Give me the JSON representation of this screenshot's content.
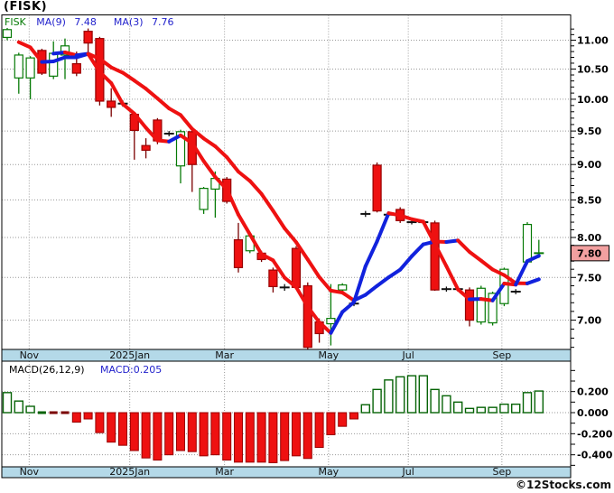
{
  "window": {
    "title": "(FISK)"
  },
  "main_chart": {
    "legend": {
      "symbol": "FISK",
      "ma9_label": "MA(9)",
      "ma9_value": "7.48",
      "ma3_label": "MA(3)",
      "ma3_value": "7.76"
    },
    "price_tag": "7.80",
    "y_axis_labels": [
      "11.00",
      "10.50",
      "10.00",
      "9.50",
      "9.00",
      "8.50",
      "8.00",
      "7.50",
      "7.00"
    ]
  },
  "macd_panel": {
    "legend_label": "MACD(26,12,9)",
    "legend_value": "MACD:0.205",
    "y_axis_labels": [
      "0.200",
      "0.000",
      "-0.200",
      "-0.400"
    ]
  },
  "watermark": "©12Stocks.com",
  "colors": {
    "candle_up": "#067a06",
    "candle_down_fill": "#ee1111",
    "candle_down_border": "#990000",
    "candle_down_wick": "#7a0000",
    "doji": "#111111",
    "ma_rising": "#1122dd",
    "ma_falling": "#ee1111",
    "band_bg": "#b4d9e8",
    "grid": "#999999",
    "price_tag_bg": "#f2a0a0",
    "macd_pos_border": "#066306",
    "legend_blue": "#2222cc",
    "axis_text": "#000000"
  },
  "chart_data": {
    "type": "candlestick+macd",
    "symbol": "FISK",
    "interval_note": "weekly candles, ~Oct 2024 - Sep 2025",
    "price_scale": "log",
    "ylim": [
      6.65,
      11.25
    ],
    "last_price": 7.8,
    "months": [
      {
        "label": "Nov",
        "week": 1.9
      },
      {
        "label": "2025Jan",
        "week": 10.6
      },
      {
        "label": "Mar",
        "week": 18.8
      },
      {
        "label": "May",
        "week": 27.8
      },
      {
        "label": "Jul",
        "week": 34.7
      },
      {
        "label": "Sep",
        "week": 42.8
      }
    ],
    "ma_overlays": [
      {
        "period": 9,
        "current": 7.48
      },
      {
        "period": 3,
        "current": 7.76
      }
    ],
    "candles": [
      {
        "o": 11.05,
        "h": 11.22,
        "l": 11.0,
        "c": 11.19,
        "t": "g"
      },
      {
        "o": 10.35,
        "h": 10.78,
        "l": 10.09,
        "c": 10.74,
        "t": "g"
      },
      {
        "o": 10.35,
        "h": 10.72,
        "l": 10.0,
        "c": 10.69,
        "t": "g"
      },
      {
        "o": 10.82,
        "h": 10.85,
        "l": 10.4,
        "c": 10.43,
        "t": "r"
      },
      {
        "o": 10.38,
        "h": 10.98,
        "l": 10.33,
        "c": 10.77,
        "t": "g"
      },
      {
        "o": 10.74,
        "h": 11.03,
        "l": 10.33,
        "c": 10.9,
        "t": "g"
      },
      {
        "o": 10.59,
        "h": 10.8,
        "l": 10.38,
        "c": 10.43,
        "t": "r"
      },
      {
        "o": 11.16,
        "h": 11.21,
        "l": 10.79,
        "c": 10.95,
        "t": "r"
      },
      {
        "o": 11.03,
        "h": 11.06,
        "l": 9.9,
        "c": 9.97,
        "t": "r"
      },
      {
        "o": 9.97,
        "h": 10.18,
        "l": 9.72,
        "c": 9.87,
        "t": "r"
      },
      {
        "o": 9.93,
        "h": 9.98,
        "l": 9.88,
        "c": 9.93,
        "t": "d"
      },
      {
        "o": 9.76,
        "h": 9.8,
        "l": 9.07,
        "c": 9.51,
        "t": "r"
      },
      {
        "o": 9.28,
        "h": 9.39,
        "l": 9.09,
        "c": 9.21,
        "t": "r"
      },
      {
        "o": 9.67,
        "h": 9.7,
        "l": 9.3,
        "c": 9.35,
        "t": "r"
      },
      {
        "o": 9.46,
        "h": 9.5,
        "l": 9.42,
        "c": 9.46,
        "t": "d"
      },
      {
        "o": 8.98,
        "h": 9.52,
        "l": 8.73,
        "c": 9.49,
        "t": "g"
      },
      {
        "o": 9.49,
        "h": 9.52,
        "l": 8.61,
        "c": 9.0,
        "t": "r"
      },
      {
        "o": 8.37,
        "h": 8.68,
        "l": 8.31,
        "c": 8.66,
        "t": "g"
      },
      {
        "o": 8.65,
        "h": 8.9,
        "l": 8.26,
        "c": 8.8,
        "t": "g"
      },
      {
        "o": 8.79,
        "h": 8.82,
        "l": 8.45,
        "c": 8.48,
        "t": "r"
      },
      {
        "o": 7.97,
        "h": 8.19,
        "l": 7.56,
        "c": 7.62,
        "t": "r"
      },
      {
        "o": 7.83,
        "h": 8.04,
        "l": 7.8,
        "c": 8.02,
        "t": "g"
      },
      {
        "o": 7.8,
        "h": 7.83,
        "l": 7.69,
        "c": 7.72,
        "t": "r"
      },
      {
        "o": 7.59,
        "h": 7.62,
        "l": 7.32,
        "c": 7.39,
        "t": "r"
      },
      {
        "o": 7.38,
        "h": 7.42,
        "l": 7.34,
        "c": 7.38,
        "t": "d"
      },
      {
        "o": 7.86,
        "h": 7.89,
        "l": 7.36,
        "c": 7.38,
        "t": "r"
      },
      {
        "o": 7.4,
        "h": 7.44,
        "l": 6.68,
        "c": 6.7,
        "t": "r"
      },
      {
        "o": 6.98,
        "h": 7.02,
        "l": 6.75,
        "c": 6.85,
        "t": "r"
      },
      {
        "o": 6.96,
        "h": 7.42,
        "l": 6.72,
        "c": 7.02,
        "t": "g"
      },
      {
        "o": 7.35,
        "h": 7.43,
        "l": 7.33,
        "c": 7.41,
        "t": "g"
      },
      {
        "o": 7.19,
        "h": 7.22,
        "l": 7.16,
        "c": 7.19,
        "t": "d"
      },
      {
        "o": 8.31,
        "h": 8.35,
        "l": 8.27,
        "c": 8.31,
        "t": "d"
      },
      {
        "o": 8.99,
        "h": 9.03,
        "l": 8.33,
        "c": 8.35,
        "t": "r"
      },
      {
        "o": 8.3,
        "h": 8.33,
        "l": 8.27,
        "c": 8.3,
        "t": "d"
      },
      {
        "o": 8.37,
        "h": 8.4,
        "l": 8.19,
        "c": 8.22,
        "t": "r"
      },
      {
        "o": 8.2,
        "h": 8.23,
        "l": 8.17,
        "c": 8.2,
        "t": "d"
      },
      {
        "o": 8.2,
        "h": 8.23,
        "l": 8.17,
        "c": 8.2,
        "t": "d"
      },
      {
        "o": 8.19,
        "h": 8.22,
        "l": 7.34,
        "c": 7.35,
        "t": "r"
      },
      {
        "o": 7.36,
        "h": 7.39,
        "l": 7.33,
        "c": 7.36,
        "t": "d"
      },
      {
        "o": 7.36,
        "h": 7.39,
        "l": 7.33,
        "c": 7.36,
        "t": "d"
      },
      {
        "o": 7.35,
        "h": 7.38,
        "l": 6.93,
        "c": 7.0,
        "t": "r"
      },
      {
        "o": 6.98,
        "h": 7.4,
        "l": 6.95,
        "c": 7.37,
        "t": "g"
      },
      {
        "o": 6.97,
        "h": 7.33,
        "l": 6.94,
        "c": 7.31,
        "t": "g"
      },
      {
        "o": 7.19,
        "h": 7.62,
        "l": 7.16,
        "c": 7.6,
        "t": "g"
      },
      {
        "o": 7.33,
        "h": 7.36,
        "l": 7.3,
        "c": 7.33,
        "t": "d"
      },
      {
        "o": 7.69,
        "h": 8.2,
        "l": 7.66,
        "c": 8.17,
        "t": "g"
      },
      {
        "o": 7.8,
        "h": 7.97,
        "l": 7.74,
        "c": 7.8,
        "t": "gd"
      }
    ],
    "macd": {
      "params": [
        26,
        12,
        9
      ],
      "current": 0.205,
      "ylim": [
        -0.51,
        0.42
      ],
      "values": [
        0.19,
        0.11,
        0.06,
        0.015,
        -0.01,
        -0.01,
        -0.09,
        -0.06,
        -0.19,
        -0.28,
        -0.31,
        -0.36,
        -0.43,
        -0.45,
        -0.4,
        -0.36,
        -0.37,
        -0.41,
        -0.4,
        -0.45,
        -0.47,
        -0.47,
        -0.47,
        -0.475,
        -0.455,
        -0.41,
        -0.435,
        -0.33,
        -0.21,
        -0.13,
        -0.06,
        0.075,
        0.22,
        0.31,
        0.34,
        0.35,
        0.35,
        0.22,
        0.16,
        0.1,
        0.04,
        0.05,
        0.05,
        0.08,
        0.08,
        0.19,
        0.205
      ]
    }
  }
}
